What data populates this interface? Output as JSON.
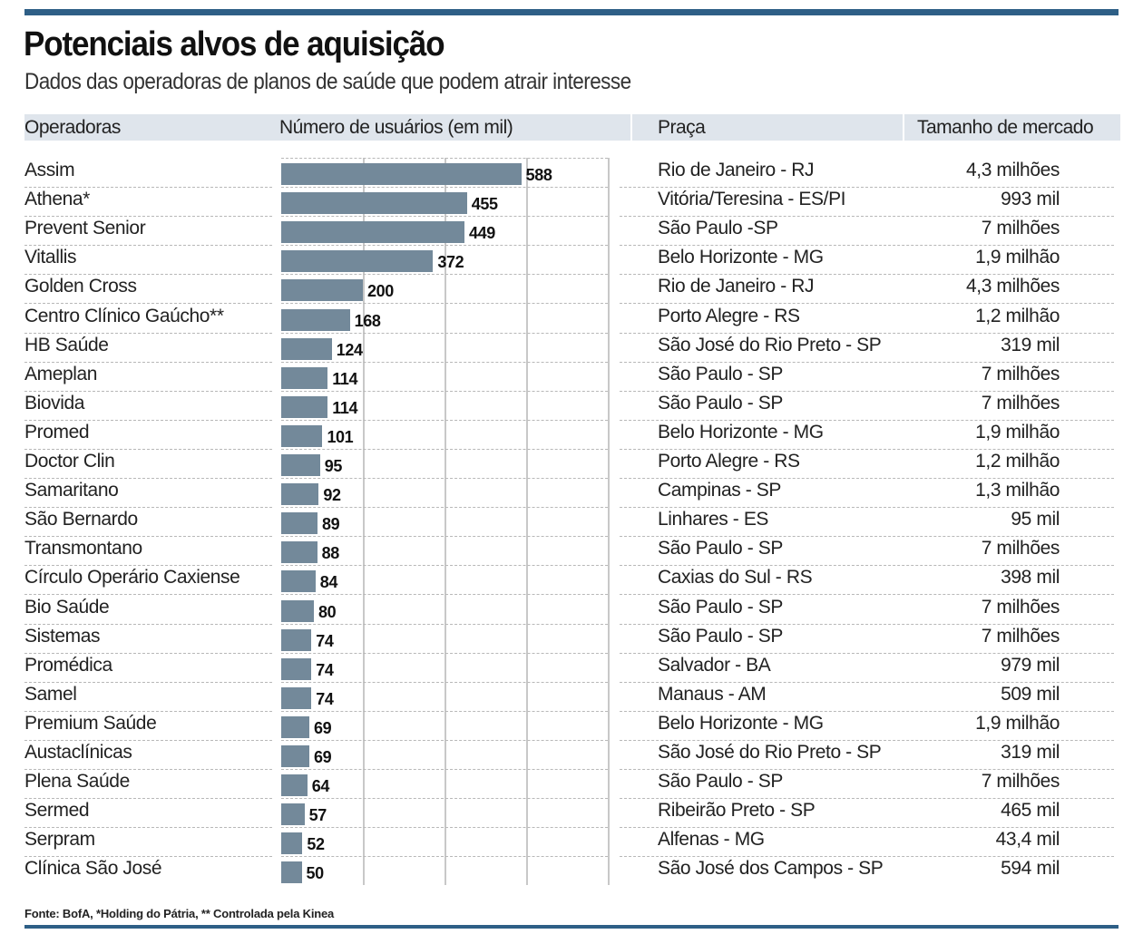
{
  "title": "Potenciais alvos de aquisição",
  "subtitle": "Dados das operadoras de planos de saúde que podem atrair interesse",
  "headers": {
    "operadoras": "Operadoras",
    "usuarios": "Número de usuários (em mil)",
    "praca": "Praça",
    "mercado": "Tamanho de mercado"
  },
  "source": "Fonte: BofA, *Holding do Pátria, ** Controlada pela Kinea",
  "colors": {
    "bar": "#73899a",
    "accent": "#2e5f86",
    "header_bg": "#dfe5ec"
  },
  "chart_data": {
    "type": "bar",
    "orientation": "horizontal",
    "title": "Número de usuários (em mil)",
    "xlim": [
      0,
      800
    ],
    "gridlines": [
      200,
      400,
      600,
      800
    ],
    "rows": [
      {
        "operadora": "Assim",
        "usuarios": 588,
        "praca": "Rio de Janeiro - RJ",
        "mercado": "4,3 milhões"
      },
      {
        "operadora": "Athena*",
        "usuarios": 455,
        "praca": "Vitória/Teresina - ES/PI",
        "mercado": "993 mil"
      },
      {
        "operadora": "Prevent Senior",
        "usuarios": 449,
        "praca": "São Paulo -SP",
        "mercado": "7 milhões"
      },
      {
        "operadora": "Vitallis",
        "usuarios": 372,
        "praca": "Belo Horizonte - MG",
        "mercado": "1,9 milhão"
      },
      {
        "operadora": "Golden Cross",
        "usuarios": 200,
        "praca": "Rio de Janeiro - RJ",
        "mercado": "4,3 milhões"
      },
      {
        "operadora": "Centro Clínico Gaúcho**",
        "usuarios": 168,
        "praca": "Porto Alegre - RS",
        "mercado": "1,2 milhão"
      },
      {
        "operadora": "HB Saúde",
        "usuarios": 124,
        "praca": "São José do Rio Preto - SP",
        "mercado": "319 mil"
      },
      {
        "operadora": "Ameplan",
        "usuarios": 114,
        "praca": "São Paulo - SP",
        "mercado": "7 milhões"
      },
      {
        "operadora": "Biovida",
        "usuarios": 114,
        "praca": "São Paulo - SP",
        "mercado": "7 milhões"
      },
      {
        "operadora": "Promed",
        "usuarios": 101,
        "praca": "Belo Horizonte - MG",
        "mercado": "1,9 milhão"
      },
      {
        "operadora": "Doctor Clin",
        "usuarios": 95,
        "praca": "Porto Alegre - RS",
        "mercado": "1,2 milhão"
      },
      {
        "operadora": "Samaritano",
        "usuarios": 92,
        "praca": "Campinas - SP",
        "mercado": "1,3 milhão"
      },
      {
        "operadora": "São Bernardo",
        "usuarios": 89,
        "praca": "Linhares - ES",
        "mercado": "95 mil"
      },
      {
        "operadora": "Transmontano",
        "usuarios": 88,
        "praca": "São Paulo - SP",
        "mercado": "7 milhões"
      },
      {
        "operadora": "Círculo Operário Caxiense",
        "usuarios": 84,
        "praca": "Caxias do Sul - RS",
        "mercado": "398 mil"
      },
      {
        "operadora": "Bio Saúde",
        "usuarios": 80,
        "praca": "São Paulo - SP",
        "mercado": "7 milhões"
      },
      {
        "operadora": "Sistemas",
        "usuarios": 74,
        "praca": "São Paulo - SP",
        "mercado": "7 milhões"
      },
      {
        "operadora": "Promédica",
        "usuarios": 74,
        "praca": "Salvador - BA",
        "mercado": "979 mil"
      },
      {
        "operadora": "Samel",
        "usuarios": 74,
        "praca": "Manaus - AM",
        "mercado": "509 mil"
      },
      {
        "operadora": "Premium Saúde",
        "usuarios": 69,
        "praca": "Belo Horizonte - MG",
        "mercado": "1,9 milhão"
      },
      {
        "operadora": "Austaclínicas",
        "usuarios": 69,
        "praca": "São José do Rio Preto - SP",
        "mercado": "319 mil"
      },
      {
        "operadora": "Plena Saúde",
        "usuarios": 64,
        "praca": "São Paulo - SP",
        "mercado": "7 milhões"
      },
      {
        "operadora": "Sermed",
        "usuarios": 57,
        "praca": "Ribeirão Preto - SP",
        "mercado": "465 mil"
      },
      {
        "operadora": "Serpram",
        "usuarios": 52,
        "praca": "Alfenas - MG",
        "mercado": "43,4 mil"
      },
      {
        "operadora": "Clínica São José",
        "usuarios": 50,
        "praca": "São José dos Campos - SP",
        "mercado": "594 mil"
      }
    ]
  }
}
